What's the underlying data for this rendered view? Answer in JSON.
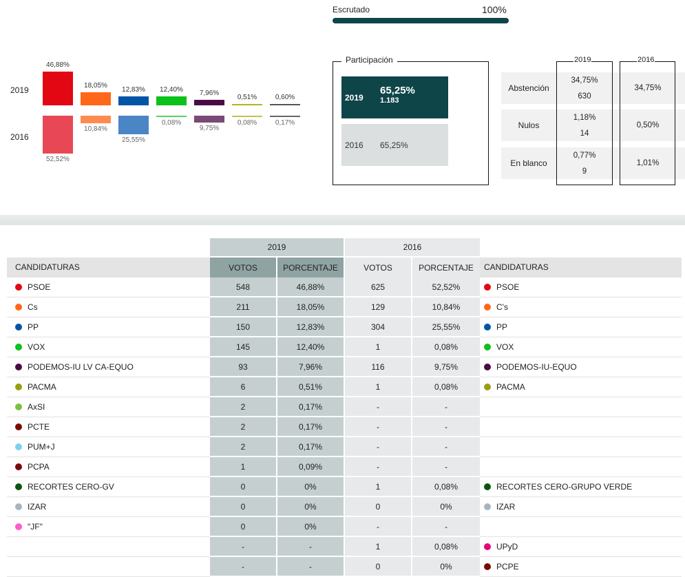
{
  "scrutiny": {
    "label": "Escrutado",
    "value": "100%",
    "progress_percent": 100
  },
  "participation": {
    "title": "Participación",
    "y2019": {
      "year": "2019",
      "percent": "65,25%",
      "votes": "1.183"
    },
    "y2016": {
      "year": "2016",
      "percent": "65,25%"
    }
  },
  "stats": {
    "year_2019": "2019",
    "year_2016": "2016",
    "rows": [
      {
        "label": "Abstención",
        "v2019_pct": "34,75%",
        "v2019_votes": "630",
        "v2016_pct": "34,75%"
      },
      {
        "label": "Nulos",
        "v2019_pct": "1,18%",
        "v2019_votes": "14",
        "v2016_pct": "0,50%"
      },
      {
        "label": "En blanco",
        "v2019_pct": "0,77%",
        "v2019_votes": "9",
        "v2016_pct": "1,01%"
      }
    ]
  },
  "chart_data": {
    "type": "bar",
    "row_labels": [
      "2019",
      "2016"
    ],
    "series": [
      {
        "v2019": 46.88,
        "l2019": "46,88%",
        "v2016": 52.52,
        "l2016": "52,52%",
        "c2019": "#e30613",
        "c2016": "#e84855"
      },
      {
        "v2019": 18.05,
        "l2019": "18,05%",
        "v2016": 10.84,
        "l2016": "10,84%",
        "c2019": "#ff6719",
        "c2016": "#ff8a50"
      },
      {
        "v2019": 12.83,
        "l2019": "12,83%",
        "v2016": 25.55,
        "l2016": "25,55%",
        "c2019": "#0055a7",
        "c2016": "#4a86c5"
      },
      {
        "v2019": 12.4,
        "l2019": "12,40%",
        "v2016": 0.08,
        "l2016": "0,08%",
        "c2019": "#0bc21c",
        "c2016": "#55d35f"
      },
      {
        "v2019": 7.96,
        "l2019": "7,96%",
        "v2016": 9.75,
        "l2016": "9,75%",
        "c2019": "#4b0a45",
        "c2016": "#7a4a76"
      },
      {
        "v2019": 0.51,
        "l2019": "0,51%",
        "v2016": 0.08,
        "l2016": "0,08%",
        "c2019": "#b5b524",
        "c2016": "#c3c34a"
      },
      {
        "v2019": 0.6,
        "l2019": "0,60%",
        "v2016": 0.17,
        "l2016": "0,17%",
        "c2019": "#555555",
        "c2016": "#666666"
      }
    ]
  },
  "table": {
    "year_2019": "2019",
    "year_2016": "2016",
    "col_candidaturas": "CANDIDATURAS",
    "col_votos": "VOTOS",
    "col_porcentaje": "PORCENTAJE",
    "rows": [
      {
        "name19": "PSOE",
        "color19": "#e30613",
        "v19": "548",
        "p19": "46,88%",
        "v16": "625",
        "p16": "52,52%",
        "name16": "PSOE",
        "color16": "#e30613"
      },
      {
        "name19": "Cs",
        "color19": "#ff6719",
        "v19": "211",
        "p19": "18,05%",
        "v16": "129",
        "p16": "10,84%",
        "name16": "C's",
        "color16": "#ff6719"
      },
      {
        "name19": "PP",
        "color19": "#0055a7",
        "v19": "150",
        "p19": "12,83%",
        "v16": "304",
        "p16": "25,55%",
        "name16": "PP",
        "color16": "#0055a7"
      },
      {
        "name19": "VOX",
        "color19": "#0bc21c",
        "v19": "145",
        "p19": "12,40%",
        "v16": "1",
        "p16": "0,08%",
        "name16": "VOX",
        "color16": "#0bc21c"
      },
      {
        "name19": "PODEMOS-IU LV CA-EQUO",
        "color19": "#4b0a45",
        "v19": "93",
        "p19": "7,96%",
        "v16": "116",
        "p16": "9,75%",
        "name16": "PODEMOS-IU-EQUO",
        "color16": "#4b0a45"
      },
      {
        "name19": "PACMA",
        "color19": "#9c9c14",
        "v19": "6",
        "p19": "0,51%",
        "v16": "1",
        "p16": "0,08%",
        "name16": "PACMA",
        "color16": "#9c9c14"
      },
      {
        "name19": "AxSI",
        "color19": "#7ac142",
        "v19": "2",
        "p19": "0,17%",
        "v16": "-",
        "p16": "-",
        "name16": "",
        "color16": ""
      },
      {
        "name19": "PCTE",
        "color19": "#7a0a0a",
        "v19": "2",
        "p19": "0,17%",
        "v16": "-",
        "p16": "-",
        "name16": "",
        "color16": ""
      },
      {
        "name19": "PUM+J",
        "color19": "#7fd0f0",
        "v19": "2",
        "p19": "0,17%",
        "v16": "-",
        "p16": "-",
        "name16": "",
        "color16": ""
      },
      {
        "name19": "PCPA",
        "color19": "#7a0a0a",
        "v19": "1",
        "p19": "0,09%",
        "v16": "-",
        "p16": "-",
        "name16": "",
        "color16": ""
      },
      {
        "name19": "RECORTES CERO-GV",
        "color19": "#0b5513",
        "v19": "0",
        "p19": "0%",
        "v16": "1",
        "p16": "0,08%",
        "name16": "RECORTES CERO-GRUPO VERDE",
        "color16": "#0b5513"
      },
      {
        "name19": "IZAR",
        "color19": "#a8b4c4",
        "v19": "0",
        "p19": "0%",
        "v16": "0",
        "p16": "0%",
        "name16": "IZAR",
        "color16": "#a8b4c4"
      },
      {
        "name19": "\"JF\"",
        "color19": "#ff5ccd",
        "v19": "0",
        "p19": "0%",
        "v16": "-",
        "p16": "-",
        "name16": "",
        "color16": ""
      },
      {
        "name19": "",
        "color19": "",
        "v19": "-",
        "p19": "-",
        "v16": "1",
        "p16": "0,08%",
        "name16": "UPyD",
        "color16": "#e5007d"
      },
      {
        "name19": "",
        "color19": "",
        "v19": "-",
        "p19": "-",
        "v16": "0",
        "p16": "0%",
        "name16": "PCPE",
        "color16": "#7a0a0a"
      }
    ]
  }
}
